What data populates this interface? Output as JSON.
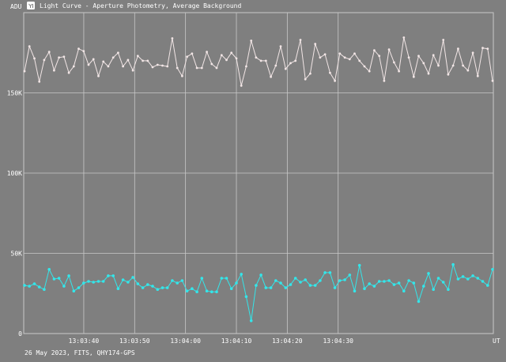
{
  "window": {
    "icon": "app-logo-icon",
    "title": "Light Curve - Aperture Photometry, Average Background"
  },
  "footer": {
    "caption": "26 May 2023, FITS, QHY174-GPS"
  },
  "colors": {
    "background": "#7f7f7f",
    "grid": "#c8c8c8",
    "series_target": "#f2e6e6",
    "series_comparison": "#33e6ea"
  },
  "chart_data": {
    "type": "line",
    "ylabel": "ADU",
    "xunit": "UT",
    "ylim": [
      0,
      200000
    ],
    "xlim": [
      "13:03:28.2",
      "13:05:00.5"
    ],
    "grid": true,
    "y_ticks": [
      {
        "value": 0,
        "label": "0"
      },
      {
        "value": 50000,
        "label": "50K"
      },
      {
        "value": 100000,
        "label": "100K"
      },
      {
        "value": 150000,
        "label": "150K"
      }
    ],
    "x_ticks": [
      {
        "value": "13:03:40",
        "label": "13:03:40"
      },
      {
        "value": "13:03:50",
        "label": "13:03:50"
      },
      {
        "value": "13:04:00",
        "label": "13:04:00"
      },
      {
        "value": "13:04:10",
        "label": "13:04:10"
      },
      {
        "value": "13:04:20",
        "label": "13:04:20"
      },
      {
        "value": "13:04:30",
        "label": "13:04:30"
      }
    ],
    "series": [
      {
        "values": [
          163500,
          179000,
          171500,
          157000,
          170500,
          175500,
          164000,
          172000,
          172500,
          162500,
          166500,
          177500,
          176000,
          167500,
          171000,
          160500,
          169500,
          166500,
          172000,
          175000,
          166500,
          170500,
          164000,
          173000,
          170000,
          170000,
          166000,
          167500,
          167000,
          166500,
          184000,
          165500,
          160500,
          172500,
          174500,
          165500,
          165500,
          175500,
          168000,
          165500,
          173500,
          170500,
          175000,
          171500,
          154500,
          166500,
          182500,
          172000,
          170000,
          170000,
          160000,
          167000,
          179000,
          165000,
          168500,
          170000,
          183000,
          158500,
          162000,
          180500,
          172000,
          174000,
          162500,
          157500,
          174500,
          172000,
          171000,
          174500,
          170000,
          166500,
          163500,
          176500,
          173000,
          157500,
          177000,
          169000,
          163500,
          184500,
          172000,
          160000,
          173000,
          168500,
          162000,
          173500,
          167000,
          183000,
          161500,
          167000,
          177500,
          167000,
          164000,
          175000,
          160500,
          178000,
          177500,
          157500
        ]
      },
      {
        "values": [
          30000,
          29500,
          31000,
          29000,
          27500,
          40000,
          34000,
          34500,
          29500,
          36000,
          26500,
          28500,
          31500,
          32500,
          32000,
          32500,
          32500,
          36000,
          36000,
          28000,
          33500,
          32000,
          35000,
          31000,
          28500,
          30500,
          29500,
          27500,
          28500,
          28500,
          33000,
          31500,
          33000,
          26500,
          28000,
          26000,
          34500,
          26500,
          26000,
          26000,
          34500,
          34500,
          28000,
          31500,
          37000,
          23000,
          8000,
          30000,
          36500,
          28500,
          28500,
          33000,
          31500,
          28500,
          30500,
          34500,
          32000,
          33500,
          30000,
          30000,
          33000,
          38000,
          38000,
          28500,
          33000,
          33500,
          36500,
          26500,
          42500,
          28000,
          31000,
          29500,
          32500,
          32500,
          33000,
          30500,
          31500,
          26500,
          33000,
          31500,
          20000,
          29500,
          37500,
          27500,
          34500,
          32000,
          27500,
          43000,
          34000,
          35500,
          34000,
          36000,
          34500,
          32500,
          30000,
          40000
        ]
      }
    ]
  }
}
